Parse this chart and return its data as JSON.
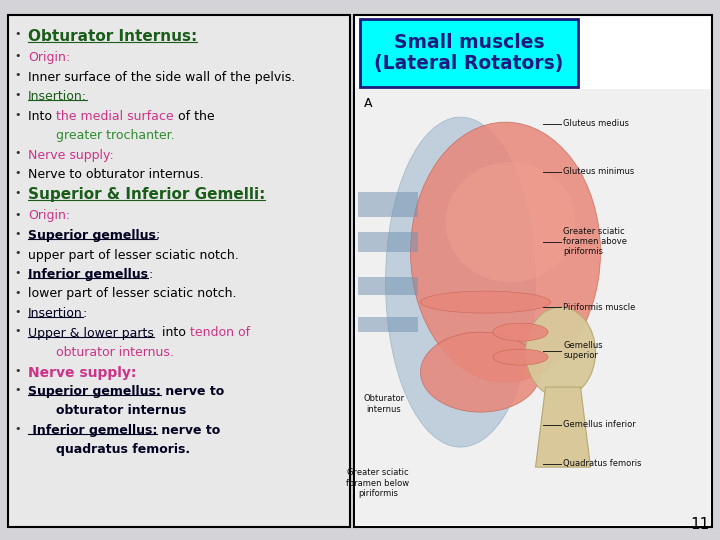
{
  "bg_color": "#d3d3d8",
  "left_panel_bg": "#e8e8e8",
  "left_panel_border": "#000000",
  "right_panel_bg": "#ffffff",
  "right_panel_border": "#000000",
  "title_box_bg": "#00ffff",
  "title_box_border": "#1a1a80",
  "title_text": "Small muscles\n(Lateral Rotators)",
  "title_color": "#1a1a80",
  "page_number": "11",
  "lines": [
    {
      "bullet": true,
      "wrap": false,
      "parts": [
        {
          "t": "Obturator Internus:",
          "c": "#1a5c1a",
          "b": true,
          "u": true,
          "s": 11
        }
      ]
    },
    {
      "bullet": true,
      "wrap": false,
      "parts": [
        {
          "t": "Origin:",
          "c": "#cc3388",
          "b": false,
          "u": false,
          "s": 9
        }
      ]
    },
    {
      "bullet": true,
      "wrap": true,
      "parts": [
        {
          "t": "Inner surface of the side wall of the pelvis.",
          "c": "#000000",
          "b": false,
          "u": false,
          "s": 9
        }
      ]
    },
    {
      "bullet": true,
      "wrap": false,
      "parts": [
        {
          "t": "Insertion:",
          "c": "#1a5c1a",
          "b": false,
          "u": true,
          "s": 9
        }
      ]
    },
    {
      "bullet": true,
      "wrap": true,
      "parts": [
        {
          "t": "Into ",
          "c": "#000000",
          "b": false,
          "u": false,
          "s": 9
        },
        {
          "t": "the medial surface",
          "c": "#cc3388",
          "b": false,
          "u": false,
          "s": 9
        },
        {
          "t": " of the",
          "c": "#000000",
          "b": false,
          "u": false,
          "s": 9
        }
      ]
    },
    {
      "bullet": false,
      "wrap": false,
      "parts": [
        {
          "t": "greater trochanter.",
          "c": "#2e8b2e",
          "b": false,
          "u": false,
          "s": 9
        }
      ],
      "indent": 28
    },
    {
      "bullet": true,
      "wrap": false,
      "parts": [
        {
          "t": "Nerve supply:",
          "c": "#cc3388",
          "b": false,
          "u": false,
          "s": 9
        }
      ]
    },
    {
      "bullet": true,
      "wrap": false,
      "parts": [
        {
          "t": "Nerve to obturator internus.",
          "c": "#000000",
          "b": false,
          "u": false,
          "s": 9
        }
      ]
    },
    {
      "bullet": true,
      "wrap": false,
      "parts": [
        {
          "t": "Superior & Inferior Gemelli:",
          "c": "#1a5c1a",
          "b": true,
          "u": true,
          "s": 11
        }
      ]
    },
    {
      "bullet": true,
      "wrap": false,
      "parts": [
        {
          "t": "Origin:",
          "c": "#cc3388",
          "b": false,
          "u": false,
          "s": 9
        }
      ]
    },
    {
      "bullet": true,
      "wrap": false,
      "parts": [
        {
          "t": "Superior gemellus",
          "c": "#000020",
          "b": true,
          "u": true,
          "s": 9
        },
        {
          "t": ";",
          "c": "#000020",
          "b": false,
          "u": false,
          "s": 9
        }
      ]
    },
    {
      "bullet": true,
      "wrap": false,
      "parts": [
        {
          "t": "upper part of lesser sciatic notch.",
          "c": "#000000",
          "b": false,
          "u": false,
          "s": 9
        }
      ]
    },
    {
      "bullet": true,
      "wrap": false,
      "parts": [
        {
          "t": "Inferior gemellus",
          "c": "#000020",
          "b": true,
          "u": true,
          "s": 9
        },
        {
          "t": ":",
          "c": "#000020",
          "b": false,
          "u": false,
          "s": 9
        }
      ]
    },
    {
      "bullet": true,
      "wrap": false,
      "parts": [
        {
          "t": "lower part of lesser sciatic notch.",
          "c": "#000000",
          "b": false,
          "u": false,
          "s": 9
        }
      ]
    },
    {
      "bullet": true,
      "wrap": false,
      "parts": [
        {
          "t": "Insertion",
          "c": "#000020",
          "b": false,
          "u": true,
          "s": 9
        },
        {
          "t": ":",
          "c": "#000020",
          "b": false,
          "u": false,
          "s": 9
        }
      ]
    },
    {
      "bullet": true,
      "wrap": true,
      "parts": [
        {
          "t": "Upper & lower parts",
          "c": "#000020",
          "b": false,
          "u": true,
          "s": 9
        },
        {
          "t": "  into ",
          "c": "#000000",
          "b": false,
          "u": false,
          "s": 9
        },
        {
          "t": "tendon of",
          "c": "#cc3388",
          "b": false,
          "u": false,
          "s": 9
        }
      ]
    },
    {
      "bullet": false,
      "wrap": false,
      "parts": [
        {
          "t": "obturator internus.",
          "c": "#cc3388",
          "b": false,
          "u": false,
          "s": 9
        }
      ],
      "indent": 28
    },
    {
      "bullet": true,
      "wrap": false,
      "parts": [
        {
          "t": "Nerve supply:",
          "c": "#cc3388",
          "b": true,
          "u": false,
          "s": 10
        }
      ]
    },
    {
      "bullet": true,
      "wrap": true,
      "parts": [
        {
          "t": "Superior gemellus:",
          "c": "#000020",
          "b": true,
          "u": true,
          "s": 9
        },
        {
          "t": " nerve to",
          "c": "#000020",
          "b": true,
          "u": false,
          "s": 9
        }
      ]
    },
    {
      "bullet": false,
      "wrap": false,
      "parts": [
        {
          "t": "obturator internus",
          "c": "#000020",
          "b": true,
          "u": false,
          "s": 9
        }
      ],
      "indent": 28
    },
    {
      "bullet": true,
      "wrap": true,
      "parts": [
        {
          "t": " Inferior gemellus:",
          "c": "#000020",
          "b": true,
          "u": true,
          "s": 9
        },
        {
          "t": " nerve to",
          "c": "#000020",
          "b": true,
          "u": false,
          "s": 9
        }
      ]
    },
    {
      "bullet": false,
      "wrap": false,
      "parts": [
        {
          "t": "quadratus femoris.",
          "c": "#000020",
          "b": true,
          "u": false,
          "s": 9
        }
      ],
      "indent": 28
    }
  ]
}
